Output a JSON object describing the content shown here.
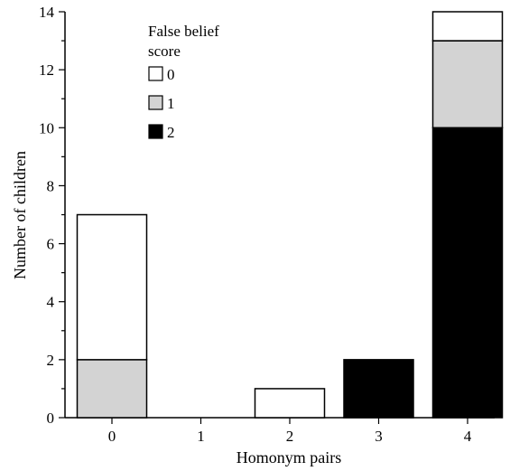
{
  "chart_data": {
    "type": "bar",
    "stacked": true,
    "title": "",
    "xlabel": "Homonym pairs",
    "ylabel": "Number of children",
    "categories": [
      "0",
      "1",
      "2",
      "3",
      "4"
    ],
    "ylim": [
      0,
      14
    ],
    "yticks": [
      "0",
      "2",
      "4",
      "6",
      "8",
      "10",
      "12",
      "14"
    ],
    "grid": false,
    "legend": {
      "title": "False belief score",
      "position": "top-left",
      "entries": [
        "0",
        "1",
        "2"
      ]
    },
    "series": [
      {
        "name": "2",
        "color": "#000000",
        "values": [
          0,
          0,
          0,
          2,
          10
        ]
      },
      {
        "name": "1",
        "color": "#d3d3d3",
        "values": [
          2,
          0,
          0,
          0,
          3
        ]
      },
      {
        "name": "0",
        "color": "#ffffff",
        "values": [
          5,
          0,
          1,
          0,
          1
        ]
      }
    ]
  }
}
